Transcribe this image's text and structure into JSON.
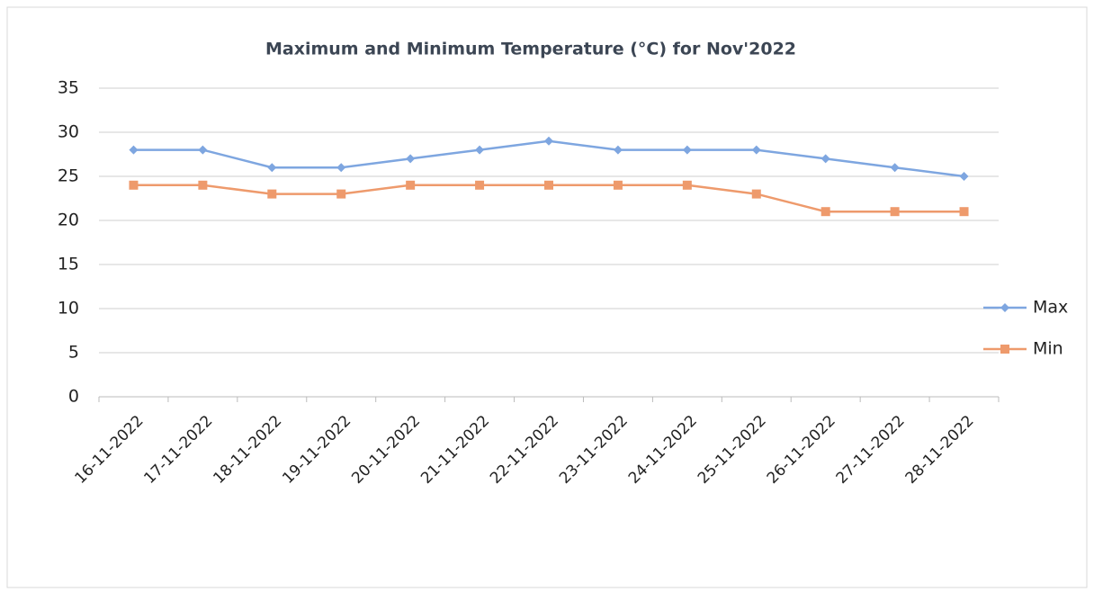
{
  "chart_data": {
    "type": "line",
    "title": "Maximum and Minimum Temperature (°C) for Nov'2022",
    "categories": [
      "16-11-2022",
      "17-11-2022",
      "18-11-2022",
      "19-11-2022",
      "20-11-2022",
      "21-11-2022",
      "22-11-2022",
      "23-11-2022",
      "24-11-2022",
      "25-11-2022",
      "26-11-2022",
      "27-11-2022",
      "28-11-2022"
    ],
    "series": [
      {
        "name": "Max",
        "color": "#7ea6e0",
        "marker": "diamond",
        "values": [
          28,
          28,
          26,
          26,
          27,
          28,
          29,
          28,
          28,
          28,
          27,
          26,
          25
        ]
      },
      {
        "name": "Min",
        "color": "#ee9a6c",
        "marker": "square",
        "values": [
          24,
          24,
          23,
          23,
          24,
          24,
          24,
          24,
          24,
          23,
          21,
          21,
          21
        ]
      }
    ],
    "ylim": [
      0,
      35
    ],
    "yticks": [
      0,
      5,
      10,
      15,
      20,
      25,
      30,
      35
    ],
    "grid": true,
    "legend": "right"
  }
}
